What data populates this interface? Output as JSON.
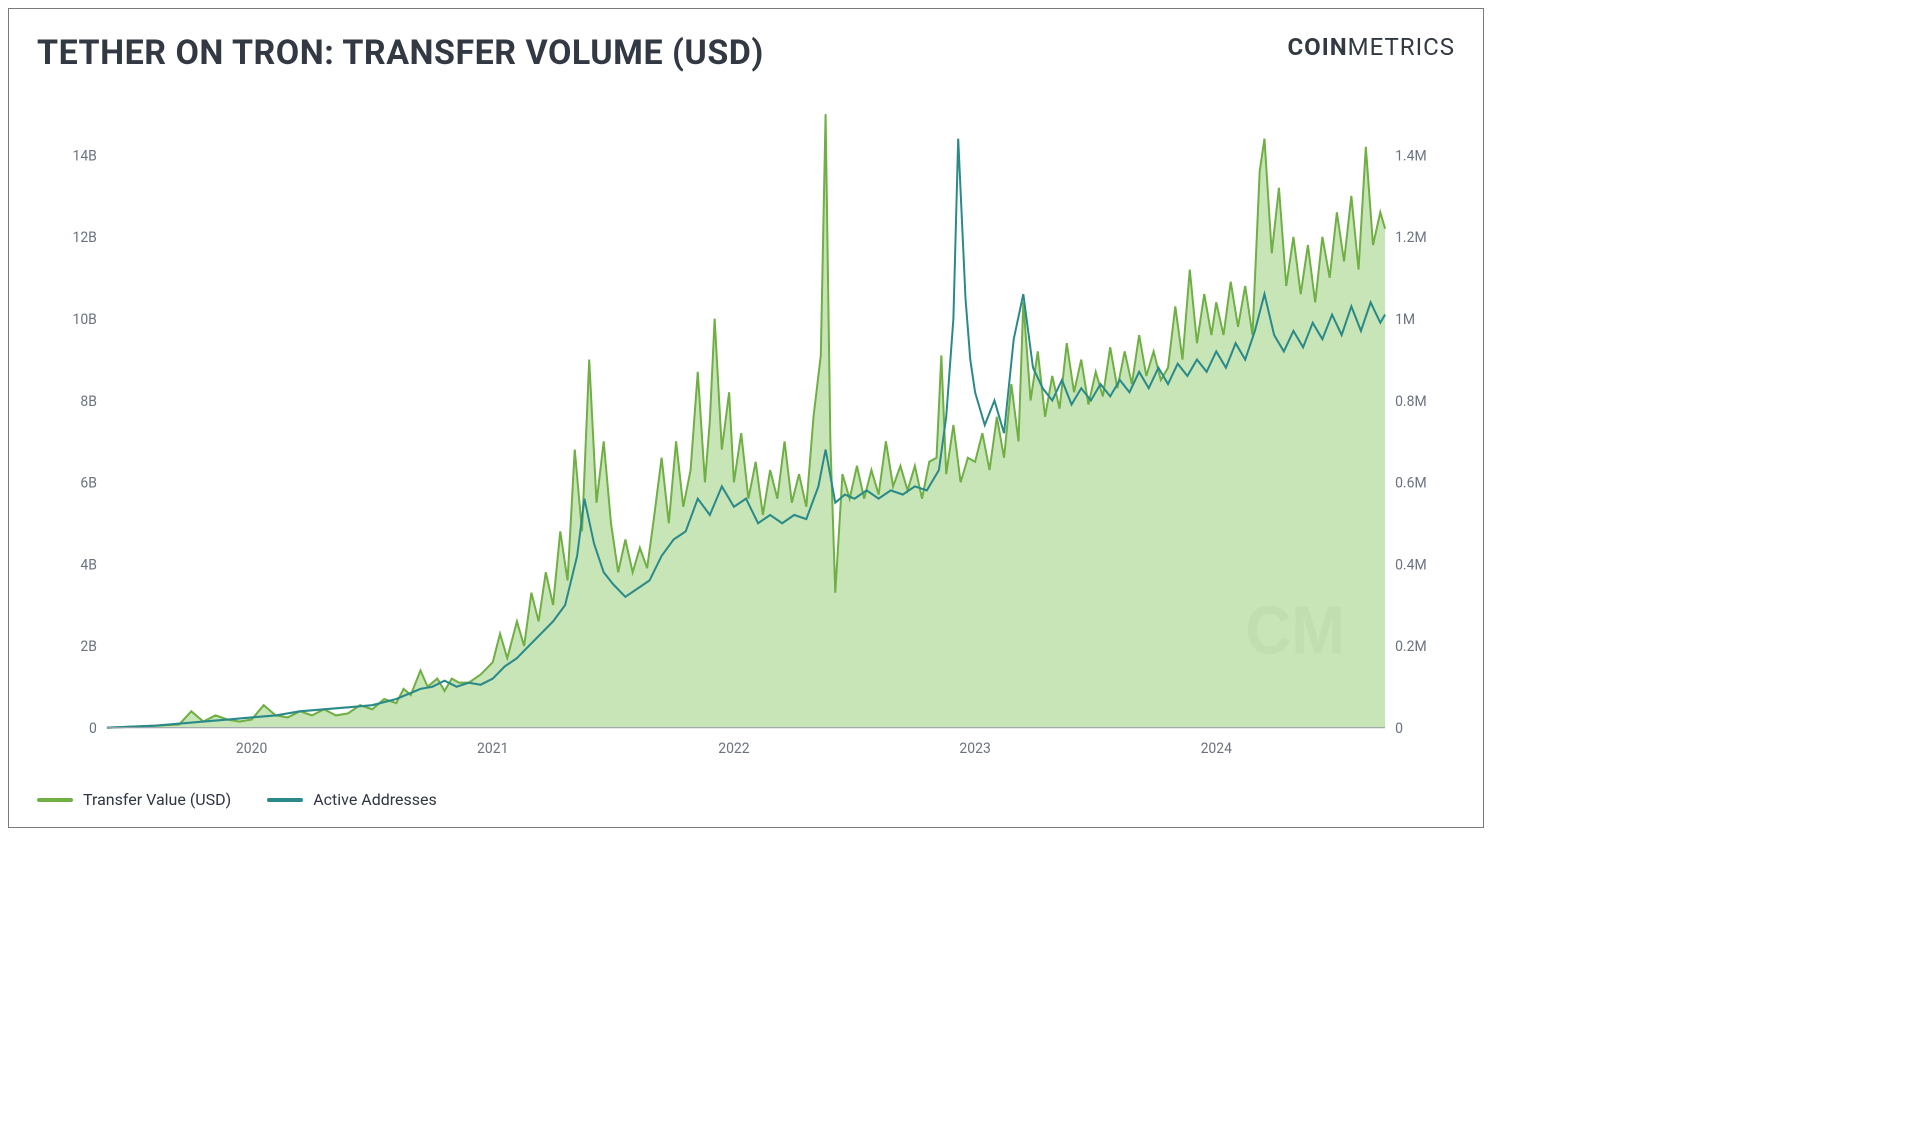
{
  "title": "TETHER ON TRON: TRANSFER VOLUME (USD)",
  "brand_bold": "COIN",
  "brand_light": "METRICS",
  "watermark": "CM",
  "legend": {
    "series1": "Transfer Value (USD)",
    "series2": "Active Addresses"
  },
  "chart": {
    "type": "area+line-dual-axis",
    "background_color": "#ffffff",
    "grid_color": "#e6e6e6",
    "axis_color": "#9ca3af",
    "text_color": "#6b7280",
    "title_fontsize": 34,
    "label_fontsize": 14,
    "legend_fontsize": 16,
    "x": {
      "min": 2019.4,
      "max": 2024.7,
      "ticks": [
        2020,
        2021,
        2022,
        2023,
        2024
      ],
      "tick_labels": [
        "2020",
        "2021",
        "2022",
        "2023",
        "2024"
      ]
    },
    "y_left": {
      "min": 0,
      "max": 15,
      "ticks": [
        0,
        2,
        4,
        6,
        8,
        10,
        12,
        14
      ],
      "tick_labels": [
        "0",
        "2B",
        "4B",
        "6B",
        "8B",
        "10B",
        "12B",
        "14B"
      ]
    },
    "y_right": {
      "min": 0,
      "max": 1.5,
      "ticks": [
        0,
        0.2,
        0.4,
        0.6,
        0.8,
        1.0,
        1.2,
        1.4
      ],
      "tick_labels": [
        "0",
        "0.2M",
        "0.4M",
        "0.6M",
        "0.8M",
        "1M",
        "1.2M",
        "1.4M"
      ]
    },
    "series1": {
      "name": "Transfer Value (USD)",
      "type": "area",
      "color_fill": "#99cf7a",
      "color_stroke": "#6faf44",
      "fill_opacity": 0.55,
      "line_width": 2,
      "axis": "left",
      "data": [
        [
          2019.4,
          0.0
        ],
        [
          2019.5,
          0.02
        ],
        [
          2019.6,
          0.05
        ],
        [
          2019.7,
          0.08
        ],
        [
          2019.75,
          0.4
        ],
        [
          2019.8,
          0.15
        ],
        [
          2019.85,
          0.3
        ],
        [
          2019.9,
          0.2
        ],
        [
          2019.95,
          0.15
        ],
        [
          2020.0,
          0.2
        ],
        [
          2020.05,
          0.55
        ],
        [
          2020.1,
          0.3
        ],
        [
          2020.15,
          0.25
        ],
        [
          2020.2,
          0.4
        ],
        [
          2020.25,
          0.3
        ],
        [
          2020.3,
          0.45
        ],
        [
          2020.35,
          0.3
        ],
        [
          2020.4,
          0.35
        ],
        [
          2020.45,
          0.55
        ],
        [
          2020.5,
          0.45
        ],
        [
          2020.55,
          0.7
        ],
        [
          2020.6,
          0.6
        ],
        [
          2020.63,
          0.95
        ],
        [
          2020.66,
          0.8
        ],
        [
          2020.7,
          1.4
        ],
        [
          2020.73,
          1.0
        ],
        [
          2020.77,
          1.2
        ],
        [
          2020.8,
          0.9
        ],
        [
          2020.83,
          1.2
        ],
        [
          2020.86,
          1.1
        ],
        [
          2020.9,
          1.1
        ],
        [
          2020.95,
          1.3
        ],
        [
          2021.0,
          1.6
        ],
        [
          2021.03,
          2.3
        ],
        [
          2021.06,
          1.7
        ],
        [
          2021.1,
          2.6
        ],
        [
          2021.13,
          2.0
        ],
        [
          2021.16,
          3.3
        ],
        [
          2021.19,
          2.6
        ],
        [
          2021.22,
          3.8
        ],
        [
          2021.25,
          3.0
        ],
        [
          2021.28,
          4.8
        ],
        [
          2021.31,
          3.6
        ],
        [
          2021.34,
          6.8
        ],
        [
          2021.37,
          4.8
        ],
        [
          2021.4,
          9.0
        ],
        [
          2021.43,
          5.5
        ],
        [
          2021.46,
          7.0
        ],
        [
          2021.49,
          5.0
        ],
        [
          2021.52,
          3.8
        ],
        [
          2021.55,
          4.6
        ],
        [
          2021.58,
          3.8
        ],
        [
          2021.61,
          4.4
        ],
        [
          2021.64,
          3.9
        ],
        [
          2021.67,
          5.2
        ],
        [
          2021.7,
          6.6
        ],
        [
          2021.73,
          5.0
        ],
        [
          2021.76,
          7.0
        ],
        [
          2021.79,
          5.4
        ],
        [
          2021.82,
          6.3
        ],
        [
          2021.85,
          8.7
        ],
        [
          2021.88,
          6.0
        ],
        [
          2021.9,
          7.5
        ],
        [
          2021.92,
          10.0
        ],
        [
          2021.95,
          6.8
        ],
        [
          2021.98,
          8.2
        ],
        [
          2022.0,
          6.0
        ],
        [
          2022.03,
          7.2
        ],
        [
          2022.06,
          5.6
        ],
        [
          2022.09,
          6.5
        ],
        [
          2022.12,
          5.2
        ],
        [
          2022.15,
          6.3
        ],
        [
          2022.18,
          5.6
        ],
        [
          2022.21,
          7.0
        ],
        [
          2022.24,
          5.5
        ],
        [
          2022.27,
          6.2
        ],
        [
          2022.3,
          5.4
        ],
        [
          2022.33,
          7.6
        ],
        [
          2022.36,
          9.1
        ],
        [
          2022.38,
          15.0
        ],
        [
          2022.4,
          7.0
        ],
        [
          2022.42,
          3.3
        ],
        [
          2022.45,
          6.2
        ],
        [
          2022.48,
          5.6
        ],
        [
          2022.51,
          6.4
        ],
        [
          2022.54,
          5.6
        ],
        [
          2022.57,
          6.3
        ],
        [
          2022.6,
          5.7
        ],
        [
          2022.63,
          7.0
        ],
        [
          2022.66,
          5.9
        ],
        [
          2022.69,
          6.4
        ],
        [
          2022.72,
          5.8
        ],
        [
          2022.75,
          6.4
        ],
        [
          2022.78,
          5.6
        ],
        [
          2022.81,
          6.5
        ],
        [
          2022.84,
          6.6
        ],
        [
          2022.86,
          9.1
        ],
        [
          2022.88,
          6.2
        ],
        [
          2022.91,
          7.4
        ],
        [
          2022.94,
          6.0
        ],
        [
          2022.97,
          6.6
        ],
        [
          2023.0,
          6.5
        ],
        [
          2023.03,
          7.2
        ],
        [
          2023.06,
          6.3
        ],
        [
          2023.09,
          7.6
        ],
        [
          2023.12,
          6.6
        ],
        [
          2023.15,
          8.4
        ],
        [
          2023.18,
          7.0
        ],
        [
          2023.2,
          10.4
        ],
        [
          2023.23,
          8.0
        ],
        [
          2023.26,
          9.2
        ],
        [
          2023.29,
          7.6
        ],
        [
          2023.32,
          8.6
        ],
        [
          2023.35,
          7.8
        ],
        [
          2023.38,
          9.4
        ],
        [
          2023.41,
          8.2
        ],
        [
          2023.44,
          9.0
        ],
        [
          2023.47,
          7.9
        ],
        [
          2023.5,
          8.7
        ],
        [
          2023.53,
          8.1
        ],
        [
          2023.56,
          9.3
        ],
        [
          2023.59,
          8.3
        ],
        [
          2023.62,
          9.2
        ],
        [
          2023.65,
          8.4
        ],
        [
          2023.68,
          9.6
        ],
        [
          2023.71,
          8.6
        ],
        [
          2023.74,
          9.2
        ],
        [
          2023.77,
          8.5
        ],
        [
          2023.8,
          8.8
        ],
        [
          2023.83,
          10.3
        ],
        [
          2023.86,
          9.0
        ],
        [
          2023.89,
          11.2
        ],
        [
          2023.92,
          9.4
        ],
        [
          2023.95,
          10.6
        ],
        [
          2023.98,
          9.6
        ],
        [
          2024.0,
          10.4
        ],
        [
          2024.03,
          9.6
        ],
        [
          2024.06,
          10.9
        ],
        [
          2024.09,
          9.8
        ],
        [
          2024.12,
          10.8
        ],
        [
          2024.15,
          9.6
        ],
        [
          2024.18,
          13.6
        ],
        [
          2024.2,
          14.4
        ],
        [
          2024.23,
          11.6
        ],
        [
          2024.26,
          13.2
        ],
        [
          2024.29,
          10.8
        ],
        [
          2024.32,
          12.0
        ],
        [
          2024.35,
          10.6
        ],
        [
          2024.38,
          11.8
        ],
        [
          2024.41,
          10.4
        ],
        [
          2024.44,
          12.0
        ],
        [
          2024.47,
          11.0
        ],
        [
          2024.5,
          12.6
        ],
        [
          2024.53,
          11.4
        ],
        [
          2024.56,
          13.0
        ],
        [
          2024.59,
          11.2
        ],
        [
          2024.62,
          14.2
        ],
        [
          2024.65,
          11.8
        ],
        [
          2024.68,
          12.6
        ],
        [
          2024.7,
          12.2
        ]
      ]
    },
    "series2": {
      "name": "Active Addresses",
      "type": "line",
      "color": "#2a8a8a",
      "line_width": 2,
      "axis": "right",
      "data": [
        [
          2019.4,
          0.0
        ],
        [
          2019.6,
          0.005
        ],
        [
          2019.8,
          0.015
        ],
        [
          2019.9,
          0.02
        ],
        [
          2020.0,
          0.025
        ],
        [
          2020.1,
          0.03
        ],
        [
          2020.2,
          0.04
        ],
        [
          2020.3,
          0.045
        ],
        [
          2020.4,
          0.05
        ],
        [
          2020.5,
          0.055
        ],
        [
          2020.6,
          0.07
        ],
        [
          2020.7,
          0.095
        ],
        [
          2020.75,
          0.1
        ],
        [
          2020.8,
          0.115
        ],
        [
          2020.85,
          0.1
        ],
        [
          2020.9,
          0.11
        ],
        [
          2020.95,
          0.105
        ],
        [
          2021.0,
          0.12
        ],
        [
          2021.05,
          0.15
        ],
        [
          2021.1,
          0.17
        ],
        [
          2021.15,
          0.2
        ],
        [
          2021.2,
          0.23
        ],
        [
          2021.25,
          0.26
        ],
        [
          2021.3,
          0.3
        ],
        [
          2021.35,
          0.42
        ],
        [
          2021.38,
          0.56
        ],
        [
          2021.42,
          0.45
        ],
        [
          2021.46,
          0.38
        ],
        [
          2021.5,
          0.35
        ],
        [
          2021.55,
          0.32
        ],
        [
          2021.6,
          0.34
        ],
        [
          2021.65,
          0.36
        ],
        [
          2021.7,
          0.42
        ],
        [
          2021.75,
          0.46
        ],
        [
          2021.8,
          0.48
        ],
        [
          2021.85,
          0.56
        ],
        [
          2021.9,
          0.52
        ],
        [
          2021.95,
          0.59
        ],
        [
          2022.0,
          0.54
        ],
        [
          2022.05,
          0.56
        ],
        [
          2022.1,
          0.5
        ],
        [
          2022.15,
          0.52
        ],
        [
          2022.2,
          0.5
        ],
        [
          2022.25,
          0.52
        ],
        [
          2022.3,
          0.51
        ],
        [
          2022.35,
          0.59
        ],
        [
          2022.38,
          0.68
        ],
        [
          2022.42,
          0.55
        ],
        [
          2022.46,
          0.57
        ],
        [
          2022.5,
          0.56
        ],
        [
          2022.55,
          0.58
        ],
        [
          2022.6,
          0.56
        ],
        [
          2022.65,
          0.58
        ],
        [
          2022.7,
          0.57
        ],
        [
          2022.75,
          0.59
        ],
        [
          2022.8,
          0.58
        ],
        [
          2022.85,
          0.63
        ],
        [
          2022.88,
          0.76
        ],
        [
          2022.91,
          1.0
        ],
        [
          2022.93,
          1.44
        ],
        [
          2022.96,
          1.05
        ],
        [
          2022.98,
          0.9
        ],
        [
          2023.0,
          0.82
        ],
        [
          2023.04,
          0.74
        ],
        [
          2023.08,
          0.8
        ],
        [
          2023.12,
          0.72
        ],
        [
          2023.16,
          0.95
        ],
        [
          2023.2,
          1.06
        ],
        [
          2023.24,
          0.88
        ],
        [
          2023.28,
          0.83
        ],
        [
          2023.32,
          0.8
        ],
        [
          2023.36,
          0.85
        ],
        [
          2023.4,
          0.79
        ],
        [
          2023.44,
          0.83
        ],
        [
          2023.48,
          0.8
        ],
        [
          2023.52,
          0.84
        ],
        [
          2023.56,
          0.81
        ],
        [
          2023.6,
          0.85
        ],
        [
          2023.64,
          0.82
        ],
        [
          2023.68,
          0.87
        ],
        [
          2023.72,
          0.83
        ],
        [
          2023.76,
          0.88
        ],
        [
          2023.8,
          0.84
        ],
        [
          2023.84,
          0.89
        ],
        [
          2023.88,
          0.86
        ],
        [
          2023.92,
          0.9
        ],
        [
          2023.96,
          0.87
        ],
        [
          2024.0,
          0.92
        ],
        [
          2024.04,
          0.88
        ],
        [
          2024.08,
          0.94
        ],
        [
          2024.12,
          0.9
        ],
        [
          2024.16,
          0.97
        ],
        [
          2024.2,
          1.06
        ],
        [
          2024.24,
          0.96
        ],
        [
          2024.28,
          0.92
        ],
        [
          2024.32,
          0.97
        ],
        [
          2024.36,
          0.93
        ],
        [
          2024.4,
          0.99
        ],
        [
          2024.44,
          0.95
        ],
        [
          2024.48,
          1.01
        ],
        [
          2024.52,
          0.96
        ],
        [
          2024.56,
          1.03
        ],
        [
          2024.6,
          0.97
        ],
        [
          2024.64,
          1.04
        ],
        [
          2024.68,
          0.99
        ],
        [
          2024.7,
          1.01
        ]
      ]
    }
  }
}
